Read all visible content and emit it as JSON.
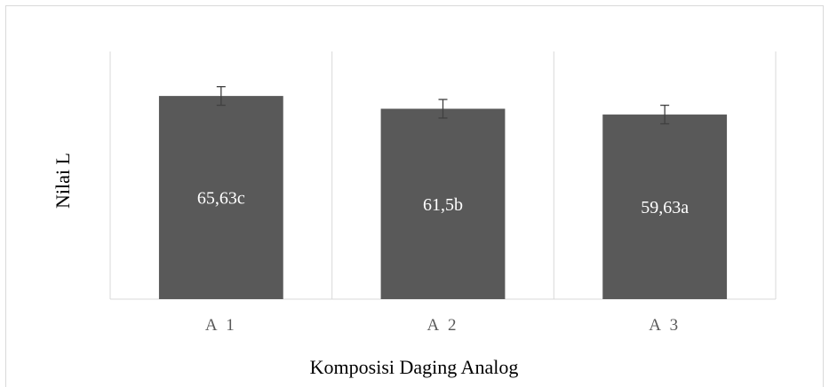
{
  "chart_data": {
    "type": "bar",
    "categories": [
      "A1",
      "A2",
      "A3"
    ],
    "values": [
      65.63,
      61.5,
      59.63
    ],
    "errors": [
      3.0,
      3.0,
      3.0
    ],
    "data_labels": [
      "65,63c",
      "61,5b",
      "59,63a"
    ],
    "xlabel": "Komposisi Daging Analog",
    "ylabel": "Nilai L",
    "ylim": [
      0,
      80
    ],
    "bar_color": "#595959",
    "grid": "vertical category separators",
    "legend": "none"
  }
}
